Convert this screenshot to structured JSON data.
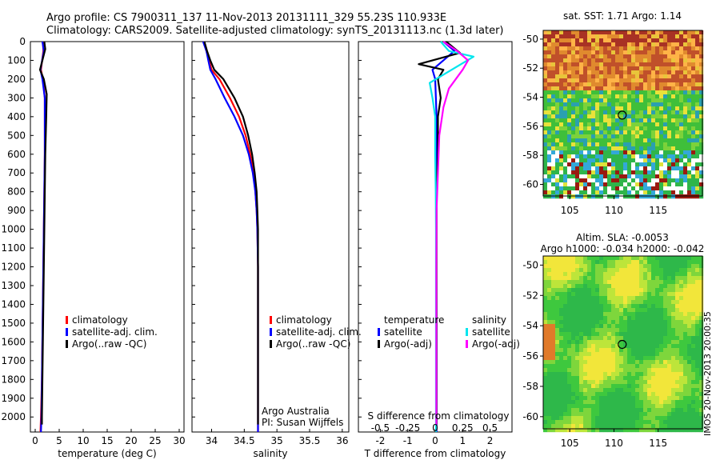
{
  "header": {
    "line1": "Argo profile: CS 7900311_137 11-Nov-2013 20131111_329 55.23S 110.933E",
    "line2": "Climatology: CARS2009. Satellite-adjusted climatology: synTS_20131113.nc (1.3d later)"
  },
  "colors": {
    "climatology": "#ff0000",
    "satellite": "#0000ff",
    "argo": "#000000",
    "sal_satellite": "#00e5ee",
    "sal_argo": "#ff00ff"
  },
  "chart_data": [
    {
      "type": "line",
      "panel": "temperature",
      "xlabel": "temperature (deg C)",
      "xlim": [
        -1,
        31
      ],
      "xticks": [
        "0",
        "5",
        "10",
        "15",
        "20",
        "25",
        "30"
      ],
      "ylim": [
        0,
        2080
      ],
      "yticks": [
        "0",
        "100",
        "200",
        "300",
        "400",
        "500",
        "600",
        "700",
        "800",
        "900",
        "1000",
        "1100",
        "1200",
        "1300",
        "1400",
        "1500",
        "1600",
        "1700",
        "1800",
        "1900",
        "2000"
      ],
      "legend": [
        "climatology",
        "satellite-adj. clim.",
        "Argo(..raw -QC)"
      ],
      "series": [
        {
          "name": "climatology",
          "points": [
            [
              1.6,
              0
            ],
            [
              1.7,
              50
            ],
            [
              1.2,
              150
            ],
            [
              1.6,
              200
            ],
            [
              2.0,
              300
            ],
            [
              2.0,
              400
            ],
            [
              2.0,
              600
            ],
            [
              1.9,
              800
            ],
            [
              1.8,
              1000
            ],
            [
              1.7,
              1200
            ],
            [
              1.6,
              1400
            ],
            [
              1.5,
              1600
            ],
            [
              1.4,
              1800
            ],
            [
              1.2,
              2000
            ],
            [
              1.1,
              2080
            ]
          ]
        },
        {
          "name": "satellite-adj. clim.",
          "points": [
            [
              1.5,
              0
            ],
            [
              1.8,
              50
            ],
            [
              1.1,
              150
            ],
            [
              1.5,
              200
            ],
            [
              2.0,
              300
            ],
            [
              2.0,
              400
            ],
            [
              2.0,
              600
            ],
            [
              1.9,
              800
            ],
            [
              1.8,
              1000
            ],
            [
              1.7,
              1200
            ],
            [
              1.6,
              1400
            ],
            [
              1.5,
              1600
            ],
            [
              1.4,
              1800
            ],
            [
              1.3,
              2000
            ],
            [
              1.2,
              2080
            ]
          ]
        },
        {
          "name": "Argo(..raw -QC)",
          "points": [
            [
              1.9,
              0
            ],
            [
              2.1,
              40
            ],
            [
              1.0,
              150
            ],
            [
              1.8,
              200
            ],
            [
              2.4,
              280
            ],
            [
              2.3,
              400
            ],
            [
              2.1,
              600
            ],
            [
              2.0,
              800
            ],
            [
              1.9,
              1000
            ],
            [
              1.8,
              1200
            ],
            [
              1.7,
              1400
            ],
            [
              1.6,
              1600
            ],
            [
              1.5,
              1800
            ],
            [
              1.4,
              2000
            ],
            [
              1.4,
              2040
            ]
          ]
        }
      ]
    },
    {
      "type": "line",
      "panel": "salinity",
      "xlabel": "salinity",
      "xlim": [
        33.7,
        36.1
      ],
      "xticks": [
        "34",
        "34.5",
        "35",
        "35.5",
        "36"
      ],
      "ylim": [
        0,
        2080
      ],
      "legend": [
        "climatology",
        "satellite-adj. clim.",
        "Argo(..raw -QC)"
      ],
      "series": [
        {
          "name": "climatology",
          "points": [
            [
              33.88,
              0
            ],
            [
              33.92,
              50
            ],
            [
              33.96,
              100
            ],
            [
              34.0,
              150
            ],
            [
              34.12,
              200
            ],
            [
              34.28,
              300
            ],
            [
              34.42,
              400
            ],
            [
              34.52,
              500
            ],
            [
              34.59,
              600
            ],
            [
              34.64,
              700
            ],
            [
              34.67,
              800
            ],
            [
              34.69,
              900
            ],
            [
              34.7,
              1000
            ],
            [
              34.71,
              1200
            ],
            [
              34.71,
              1500
            ],
            [
              34.71,
              1800
            ],
            [
              34.71,
              2000
            ],
            [
              34.71,
              2080
            ]
          ]
        },
        {
          "name": "satellite-adj. clim.",
          "points": [
            [
              33.87,
              0
            ],
            [
              33.92,
              50
            ],
            [
              33.95,
              100
            ],
            [
              33.98,
              150
            ],
            [
              34.06,
              200
            ],
            [
              34.2,
              300
            ],
            [
              34.35,
              400
            ],
            [
              34.48,
              500
            ],
            [
              34.57,
              600
            ],
            [
              34.63,
              700
            ],
            [
              34.67,
              800
            ],
            [
              34.69,
              900
            ],
            [
              34.7,
              1000
            ],
            [
              34.71,
              1200
            ],
            [
              34.71,
              1500
            ],
            [
              34.71,
              1800
            ],
            [
              34.71,
              2000
            ],
            [
              34.71,
              2080
            ]
          ]
        },
        {
          "name": "Argo(..raw -QC)",
          "points": [
            [
              33.89,
              0
            ],
            [
              33.93,
              50
            ],
            [
              33.98,
              100
            ],
            [
              34.04,
              150
            ],
            [
              34.18,
              200
            ],
            [
              34.35,
              300
            ],
            [
              34.48,
              400
            ],
            [
              34.56,
              500
            ],
            [
              34.62,
              600
            ],
            [
              34.66,
              700
            ],
            [
              34.69,
              800
            ],
            [
              34.7,
              900
            ],
            [
              34.71,
              1000
            ],
            [
              34.71,
              1200
            ],
            [
              34.71,
              1500
            ],
            [
              34.71,
              1800
            ],
            [
              34.71,
              2000
            ],
            [
              34.71,
              2040
            ]
          ]
        }
      ],
      "annotation": [
        "Argo Australia",
        "PI: Susan Wijffels"
      ]
    },
    {
      "type": "line",
      "panel": "difference",
      "xlabel": "T difference from climatology",
      "xlabel_top": "S difference from climatology",
      "xlim": [
        -2.8,
        2.8
      ],
      "xticks": [
        "-2",
        "-1",
        "0",
        "1",
        "2"
      ],
      "xticks_top": [
        "-0.5",
        "-0.25",
        "0",
        "0.25",
        "0.5"
      ],
      "ylim": [
        0,
        2080
      ],
      "legend_groups": [
        {
          "title": "temperature",
          "items": [
            "satellite",
            "Argo(-adj)"
          ]
        },
        {
          "title": "salinity",
          "items": [
            "satellite",
            "Argo(-adj)"
          ]
        }
      ],
      "series": [
        {
          "name": "temperature satellite",
          "points": [
            [
              0.3,
              0
            ],
            [
              0.7,
              50
            ],
            [
              -0.1,
              150
            ],
            [
              0,
              200
            ],
            [
              0.05,
              400
            ],
            [
              0.04,
              800
            ],
            [
              0.04,
              1200
            ],
            [
              0.05,
              1600
            ],
            [
              0.05,
              2000
            ],
            [
              0.05,
              2080
            ]
          ]
        },
        {
          "name": "temperature Argo(-adj)",
          "points": [
            [
              0.4,
              0
            ],
            [
              0.9,
              60
            ],
            [
              -0.6,
              120
            ],
            [
              0.3,
              150
            ],
            [
              0.1,
              200
            ],
            [
              0.2,
              300
            ],
            [
              0.1,
              400
            ],
            [
              0.1,
              600
            ],
            [
              0.05,
              800
            ],
            [
              0.05,
              1200
            ],
            [
              0.05,
              1600
            ],
            [
              0.05,
              2000
            ],
            [
              0.05,
              2040
            ]
          ]
        },
        {
          "name": "salinity satellite",
          "points": [
            [
              0.2,
              0
            ],
            [
              0.5,
              50
            ],
            [
              1.4,
              80
            ],
            [
              0.6,
              150
            ],
            [
              -0.2,
              220
            ],
            [
              -0.1,
              300
            ],
            [
              0,
              400
            ],
            [
              0,
              600
            ],
            [
              0.02,
              800
            ],
            [
              0.03,
              1000
            ],
            [
              0.03,
              1400
            ],
            [
              0.03,
              2000
            ],
            [
              0.03,
              2080
            ]
          ]
        },
        {
          "name": "salinity Argo(-adj)",
          "points": [
            [
              0.3,
              0
            ],
            [
              0.8,
              50
            ],
            [
              1.2,
              100
            ],
            [
              1.0,
              150
            ],
            [
              0.5,
              250
            ],
            [
              0.3,
              350
            ],
            [
              0.15,
              500
            ],
            [
              0.1,
              700
            ],
            [
              0.05,
              900
            ],
            [
              0.04,
              1200
            ],
            [
              0.04,
              1600
            ],
            [
              0.04,
              2000
            ],
            [
              0.04,
              2040
            ]
          ]
        }
      ]
    },
    {
      "type": "heatmap",
      "panel": "sst-map",
      "title": "sat. SST: 1.71  Argo: 1.14",
      "xticks": [
        "105",
        "110",
        "115"
      ],
      "yticks": [
        "-50",
        "-52",
        "-54",
        "-56",
        "-58",
        "-60"
      ],
      "xlim": [
        102,
        120
      ],
      "ylim": [
        -60.8,
        -49.4
      ],
      "marker": {
        "lon": 110.933,
        "lat": -55.23
      }
    },
    {
      "type": "heatmap",
      "panel": "sla-map",
      "title": "Altim. SLA: -0.0053",
      "subtitle": "Argo h1000: -0.034 h2000: -0.042",
      "xticks": [
        "105",
        "110",
        "115"
      ],
      "yticks": [
        "-50",
        "-52",
        "-54",
        "-56",
        "-58",
        "-60"
      ],
      "xlim": [
        102,
        120
      ],
      "ylim": [
        -60.8,
        -49.4
      ],
      "marker": {
        "lon": 110.933,
        "lat": -55.23
      }
    }
  ],
  "timestamp": "IMOS 20-Nov-2013 20:00:35"
}
